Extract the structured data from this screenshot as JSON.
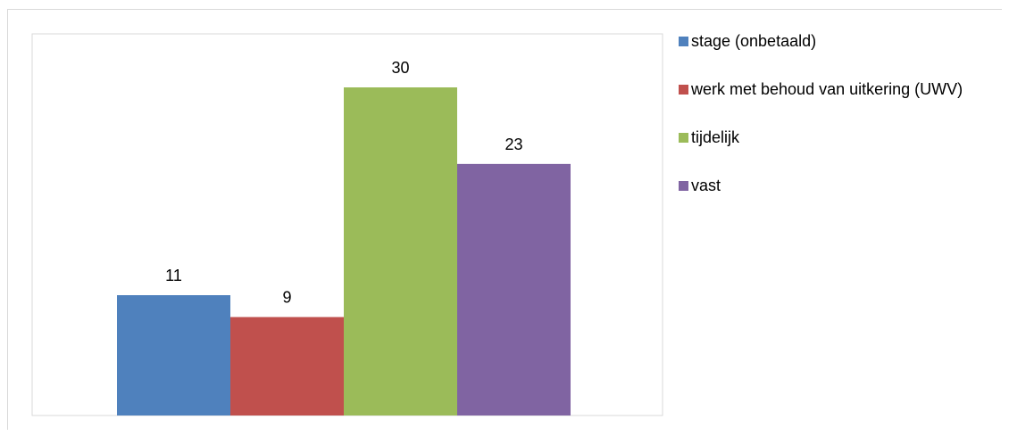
{
  "chart_data": {
    "type": "bar",
    "categories": [
      "stage (onbetaald)",
      "werk met behoud van uitkering (UWV)",
      "tijdelijk",
      "vast"
    ],
    "values": [
      11,
      9,
      30,
      23
    ],
    "colors": [
      "#4f81bd",
      "#c0504d",
      "#9bbb59",
      "#8064a2"
    ],
    "ylim": [
      0,
      30
    ],
    "grid": false,
    "legend_position": "right",
    "title": "",
    "xlabel": "",
    "ylabel": ""
  }
}
